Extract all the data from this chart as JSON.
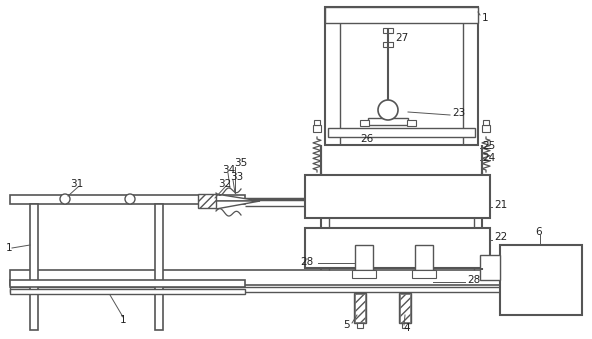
{
  "bg_color": "#ffffff",
  "line_color": "#555555",
  "label_color": "#222222",
  "figsize": [
    5.92,
    3.39
  ],
  "dpi": 100
}
